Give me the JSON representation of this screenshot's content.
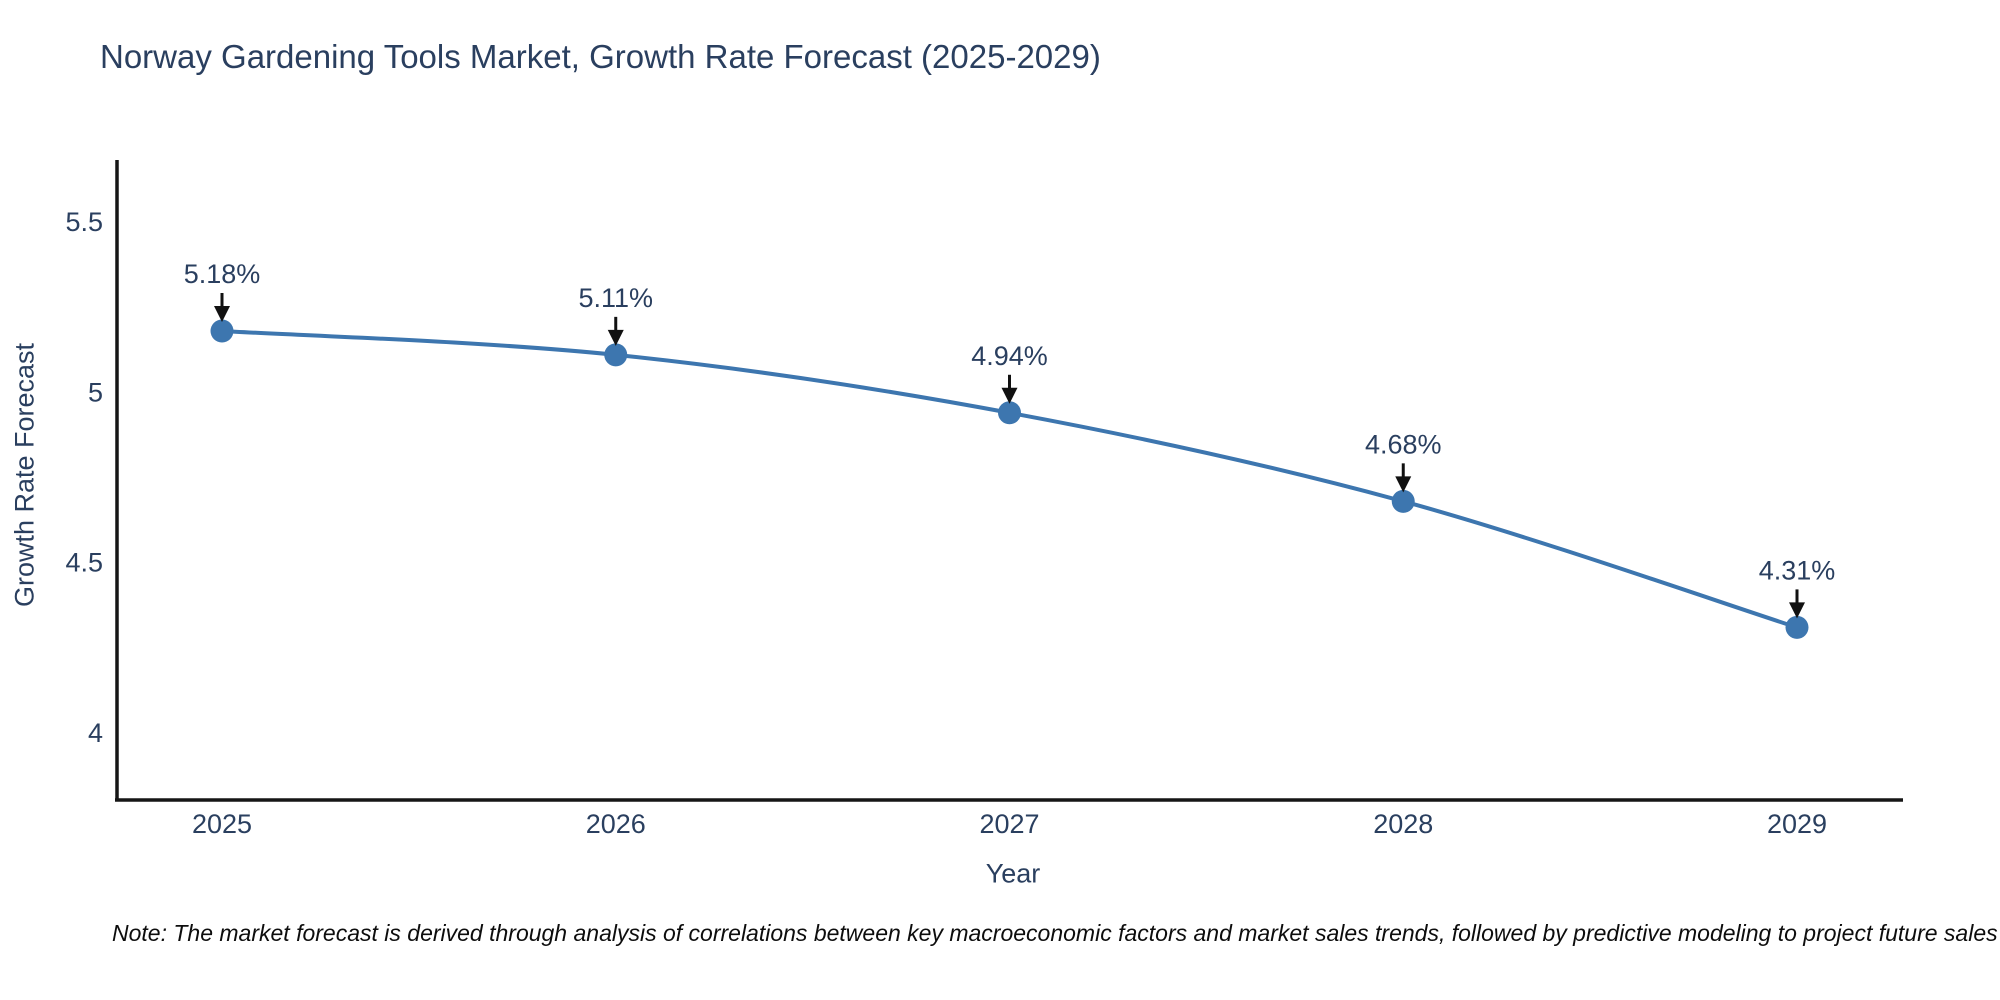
{
  "chart_data": {
    "type": "line",
    "title": "Norway Gardening Tools Market, Growth Rate Forecast (2025-2029)",
    "x": [
      2025,
      2026,
      2027,
      2028,
      2029
    ],
    "series": [
      {
        "name": "Growth Rate Forecast",
        "values": [
          5.18,
          5.11,
          4.94,
          4.68,
          4.31
        ]
      }
    ],
    "point_labels": [
      "5.18%",
      "5.11%",
      "4.94%",
      "4.68%",
      "4.31%"
    ],
    "xlabel": "Year",
    "ylabel": "Growth Rate Forecast",
    "yticks": [
      4,
      4.5,
      5,
      5.5
    ],
    "ylim": [
      3.8,
      5.68
    ],
    "grid": false,
    "legend": false,
    "line_shape": "spline",
    "marker": "circle",
    "annotation_arrows": "down",
    "footnote": "Note: The market forecast is derived through analysis of correlations between key macroeconomic factors and market sales trends, followed by predictive modeling to project future sales",
    "colors": {
      "line": "#3d76af",
      "marker": "#3d76af",
      "axis": "#161616",
      "text": "#2a3f5f",
      "arrow": "#111111",
      "note": "#0d0d0d"
    }
  }
}
